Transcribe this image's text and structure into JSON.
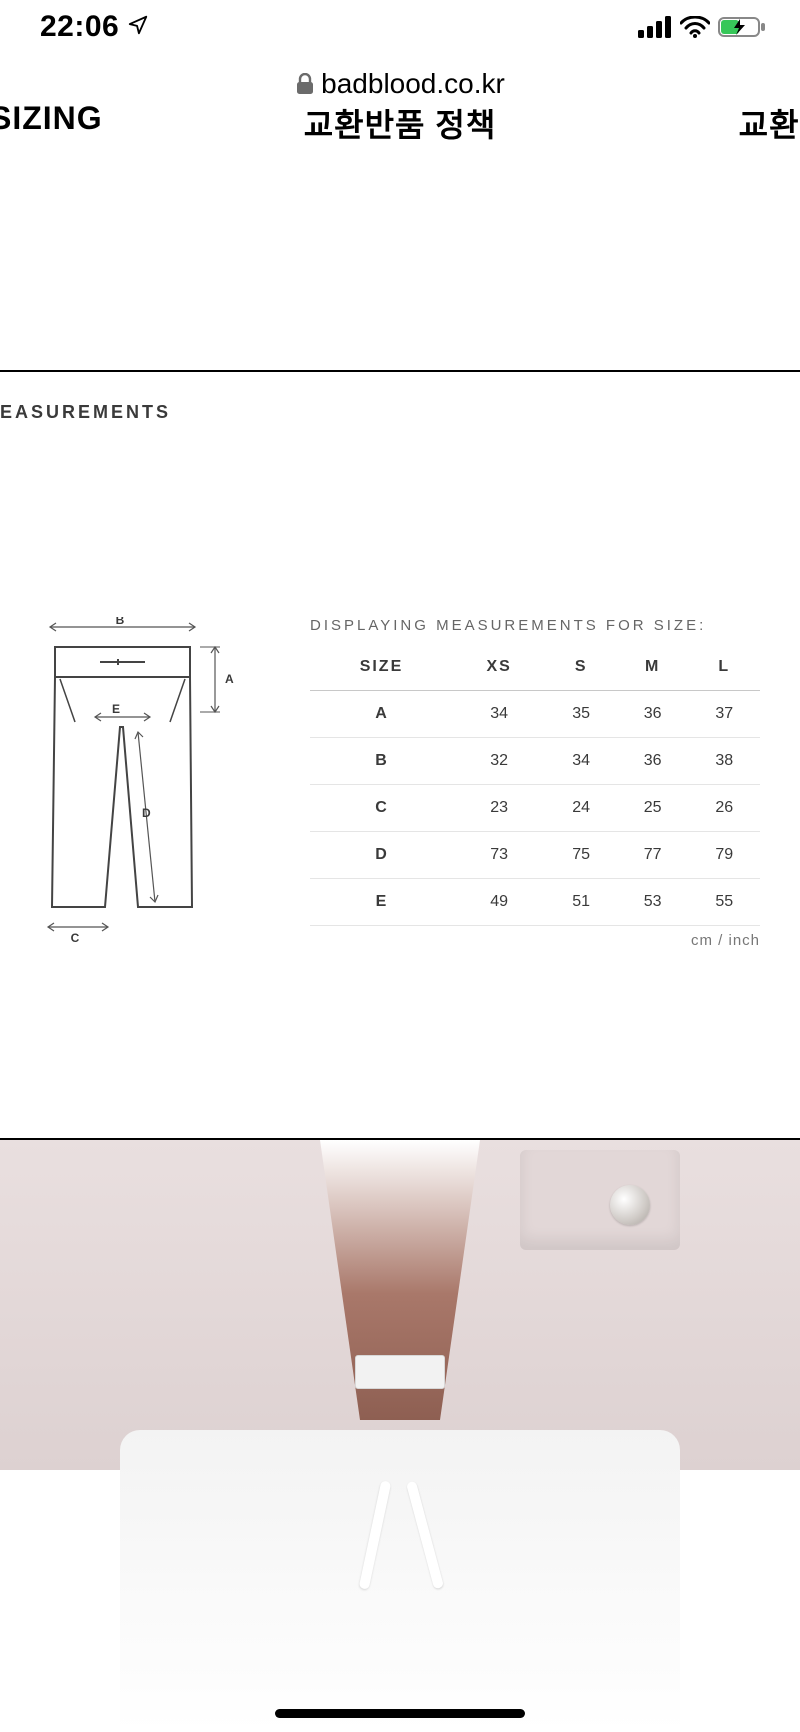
{
  "status": {
    "time": "22:06",
    "location_arrow": true
  },
  "browser": {
    "secure": true,
    "domain": "badblood.co.kr"
  },
  "tabs": {
    "left": "SIZING",
    "center": "교환반품 정책",
    "right": "교환반"
  },
  "panel": {
    "heading": "EASUREMENTS",
    "table_caption": "DISPLAYING MEASUREMENTS FOR SIZE:",
    "size_header": "SIZE",
    "columns": [
      "XS",
      "S",
      "M",
      "L"
    ],
    "rows": [
      {
        "label": "A",
        "values": [
          "34",
          "35",
          "36",
          "37"
        ]
      },
      {
        "label": "B",
        "values": [
          "32",
          "34",
          "36",
          "38"
        ]
      },
      {
        "label": "C",
        "values": [
          "23",
          "24",
          "25",
          "26"
        ]
      },
      {
        "label": "D",
        "values": [
          "73",
          "75",
          "77",
          "79"
        ]
      },
      {
        "label": "E",
        "values": [
          "49",
          "51",
          "53",
          "55"
        ]
      }
    ],
    "unit_note": "cm / inch",
    "sketch_labels": {
      "A": "A",
      "B": "B",
      "C": "C",
      "D": "D",
      "E": "E"
    }
  },
  "colors": {
    "text": "#000000",
    "muted": "#666666",
    "rule": "#c8c8c8",
    "jacket": "#e3d8d8",
    "battery_fill": "#37c759"
  }
}
